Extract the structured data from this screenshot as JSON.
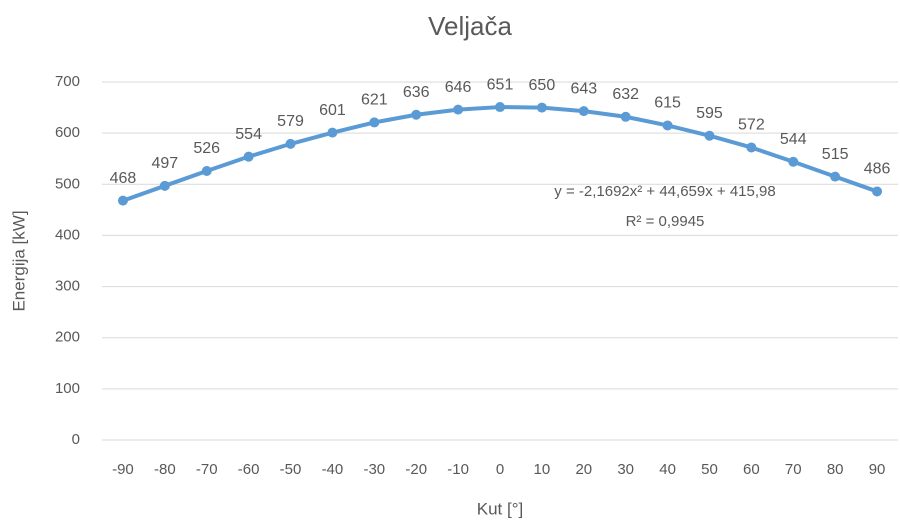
{
  "chart_data": {
    "type": "line",
    "title": "Veljača",
    "x_label": "Kut [°]",
    "y_label": "Energija [kW]",
    "categories": [
      -90,
      -80,
      -70,
      -60,
      -50,
      -40,
      -30,
      -20,
      -10,
      0,
      10,
      20,
      30,
      40,
      50,
      60,
      70,
      80,
      90
    ],
    "values": [
      468,
      497,
      526,
      554,
      579,
      601,
      621,
      636,
      646,
      651,
      650,
      643,
      632,
      615,
      595,
      572,
      544,
      515,
      486
    ],
    "color": "#5b9bd5",
    "ylim": [
      0,
      700
    ],
    "yticks": [
      0,
      100,
      200,
      300,
      400,
      500,
      600,
      700
    ],
    "grid": true,
    "annotations": [
      "y = -2,1692x² + 44,659x + 415,98",
      "R² = 0,9945"
    ]
  }
}
